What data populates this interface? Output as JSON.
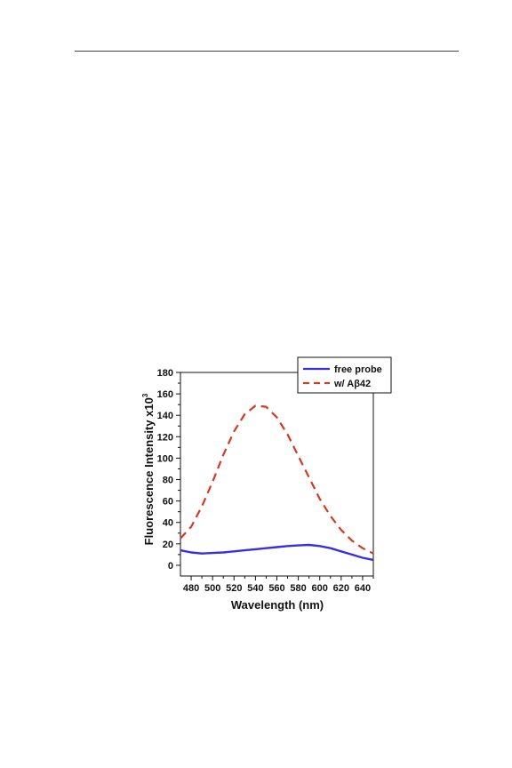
{
  "chart_data": {
    "type": "line",
    "xlabel": "Wavelength (nm)",
    "ylabel": "Fluorescence Intensity x10",
    "ylabel_superscript": "3",
    "xlim": [
      470,
      650
    ],
    "ylim": [
      -10,
      180
    ],
    "xticks": [
      480,
      500,
      520,
      540,
      560,
      580,
      600,
      620,
      640
    ],
    "yticks": [
      0,
      20,
      40,
      60,
      80,
      100,
      120,
      140,
      160,
      180
    ],
    "grid": false,
    "legend_position": "top-right",
    "series": [
      {
        "name": "free probe",
        "color": "#3a2fe0",
        "style": "solid",
        "x": [
          470,
          480,
          490,
          500,
          510,
          520,
          530,
          540,
          550,
          560,
          570,
          580,
          590,
          600,
          610,
          620,
          630,
          640,
          650
        ],
        "y": [
          14,
          12,
          11,
          11.5,
          12,
          13,
          14,
          15,
          16,
          17,
          18,
          18.5,
          19,
          18,
          16,
          13,
          10,
          7,
          5
        ]
      },
      {
        "name": "w/ Aβ42",
        "color": "#d23a22",
        "style": "dashed",
        "x": [
          470,
          480,
          490,
          500,
          510,
          520,
          530,
          540,
          550,
          560,
          570,
          580,
          590,
          600,
          610,
          620,
          630,
          640,
          650
        ],
        "y": [
          25,
          36,
          55,
          78,
          103,
          125,
          141,
          149,
          148,
          138,
          122,
          102,
          82,
          62,
          46,
          33,
          23,
          16,
          11
        ]
      }
    ]
  }
}
